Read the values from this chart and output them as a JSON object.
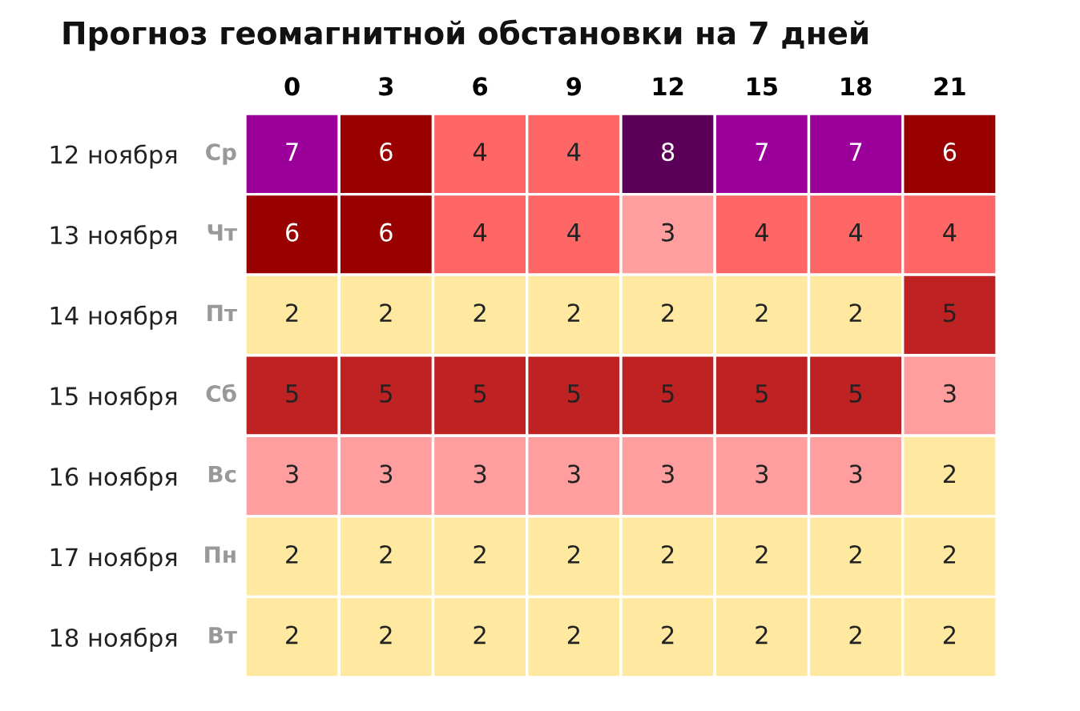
{
  "chart_data": {
    "type": "heatmap",
    "title": "Прогноз геомагнитной обстановки на 7 дней",
    "categories": [
      "0",
      "3",
      "6",
      "9",
      "12",
      "15",
      "18",
      "21"
    ],
    "y_categories": [
      "12 ноября",
      "13 ноября",
      "14 ноября",
      "15 ноября",
      "16 ноября",
      "17 ноября",
      "18 ноября"
    ],
    "y2_categories": [
      "Ср",
      "Чт",
      "Пт",
      "Сб",
      "Вс",
      "Пн",
      "Вт"
    ],
    "cells": [
      [
        7,
        6,
        4,
        4,
        8,
        7,
        7,
        6
      ],
      [
        6,
        6,
        4,
        4,
        3,
        4,
        4,
        4
      ],
      [
        2,
        2,
        2,
        2,
        2,
        2,
        2,
        5
      ],
      [
        5,
        5,
        5,
        5,
        5,
        5,
        5,
        3
      ],
      [
        3,
        3,
        3,
        3,
        3,
        3,
        3,
        2
      ],
      [
        2,
        2,
        2,
        2,
        2,
        2,
        2,
        2
      ],
      [
        2,
        2,
        2,
        2,
        2,
        2,
        2,
        2
      ]
    ],
    "colors": [
      [
        "#9b009b",
        "#990000",
        "#ff6666",
        "#ff6666",
        "#5a0058",
        "#9b009b",
        "#9b009b",
        "#990000"
      ],
      [
        "#990000",
        "#990000",
        "#ff6666",
        "#ff6666",
        "#ff9e9e",
        "#ff6666",
        "#ff6666",
        "#ff6666"
      ],
      [
        "#ffe9a1",
        "#ffe9a1",
        "#ffe9a1",
        "#ffe9a1",
        "#ffe9a1",
        "#ffe9a1",
        "#ffe9a1",
        "#bf2222"
      ],
      [
        "#bf2222",
        "#bf2222",
        "#bf2222",
        "#bf2222",
        "#bf2222",
        "#bf2222",
        "#bf2222",
        "#ff9e9e"
      ],
      [
        "#ff9e9e",
        "#ff9e9e",
        "#ff9e9e",
        "#ff9e9e",
        "#ff9e9e",
        "#ff9e9e",
        "#ff9e9e",
        "#ffe9a1"
      ],
      [
        "#ffe9a1",
        "#ffe9a1",
        "#ffe9a1",
        "#ffe9a1",
        "#ffe9a1",
        "#ffe9a1",
        "#ffe9a1",
        "#ffe9a1"
      ],
      [
        "#ffe9a1",
        "#ffe9a1",
        "#ffe9a1",
        "#ffe9a1",
        "#ffe9a1",
        "#ffe9a1",
        "#ffe9a1",
        "#ffe9a1"
      ]
    ],
    "data_labels": true
  }
}
